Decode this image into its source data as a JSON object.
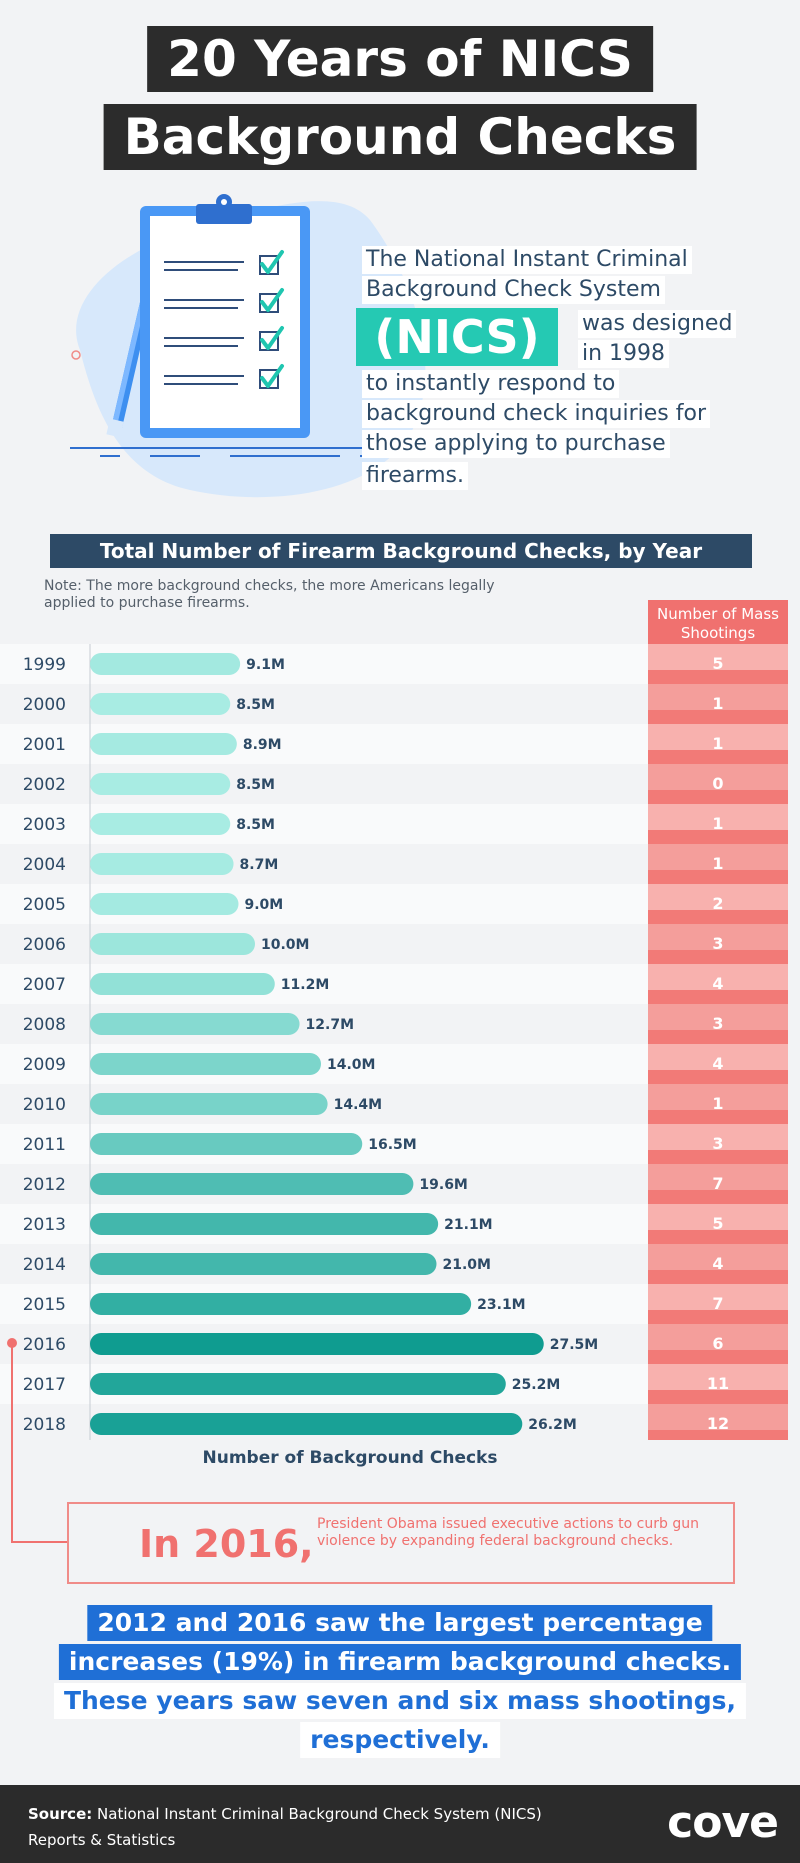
{
  "header": {
    "title_line1": "20 Years of NICS",
    "title_line2": "Background Checks"
  },
  "intro": {
    "line1": "The National Instant Criminal",
    "line2": "Background Check System",
    "badge": "(NICS)",
    "line3": "was designed",
    "line4": "in 1998",
    "line5": "to instantly respond to",
    "line6": "background check inquiries for",
    "line7": "those applying to purchase",
    "line8": "firearms."
  },
  "chart_data": {
    "type": "bar",
    "orientation": "horizontal",
    "title": "Total Number of Firearm Background Checks, by Year",
    "note": "Note: The more background checks, the more Americans legally applied to purchase firearms.",
    "xlabel": "Number of Background Checks",
    "categories": [
      "1999",
      "2000",
      "2001",
      "2002",
      "2003",
      "2004",
      "2005",
      "2006",
      "2007",
      "2008",
      "2009",
      "2010",
      "2011",
      "2012",
      "2013",
      "2014",
      "2015",
      "2016",
      "2017",
      "2018"
    ],
    "series": [
      {
        "values": [
          9.1,
          8.5,
          8.9,
          8.5,
          8.5,
          8.7,
          9.0,
          10.0,
          11.2,
          12.7,
          14.0,
          14.4,
          16.5,
          19.6,
          21.1,
          21.0,
          23.1,
          27.5,
          25.2,
          26.2
        ],
        "labels": [
          "9.1M",
          "8.5M",
          "8.9M",
          "8.5M",
          "8.5M",
          "8.7M",
          "9.0M",
          "10.0M",
          "11.2M",
          "12.7M",
          "14.0M",
          "14.4M",
          "16.5M",
          "19.6M",
          "21.1M",
          "21.0M",
          "23.1M",
          "27.5M",
          "25.2M",
          "26.2M"
        ]
      },
      {
        "name": "Number of Mass Shootings",
        "values": [
          5,
          1,
          1,
          0,
          1,
          1,
          2,
          3,
          4,
          3,
          4,
          1,
          3,
          7,
          5,
          4,
          7,
          6,
          11,
          12
        ]
      }
    ],
    "highlight_category": "2016",
    "colors": {
      "light": "#a8ece3",
      "dark": "#0f9c90",
      "mass_header": "#f0716f",
      "mass_cell": "#f7a3a0"
    }
  },
  "callout": {
    "year": "In 2016,",
    "text": "President Obama issued executive actions to curb gun violence by expanding federal background checks."
  },
  "summary": {
    "line1": "2012 and 2016 saw the largest percentage",
    "line2": "increases (19%) in firearm background checks.",
    "line3": "These years saw seven and six mass shootings,",
    "line4": "respectively."
  },
  "footer": {
    "source_label": "Source:",
    "source_text": "National Instant Criminal Background Check System (NICS) Reports & Statistics",
    "logo": "cove"
  }
}
